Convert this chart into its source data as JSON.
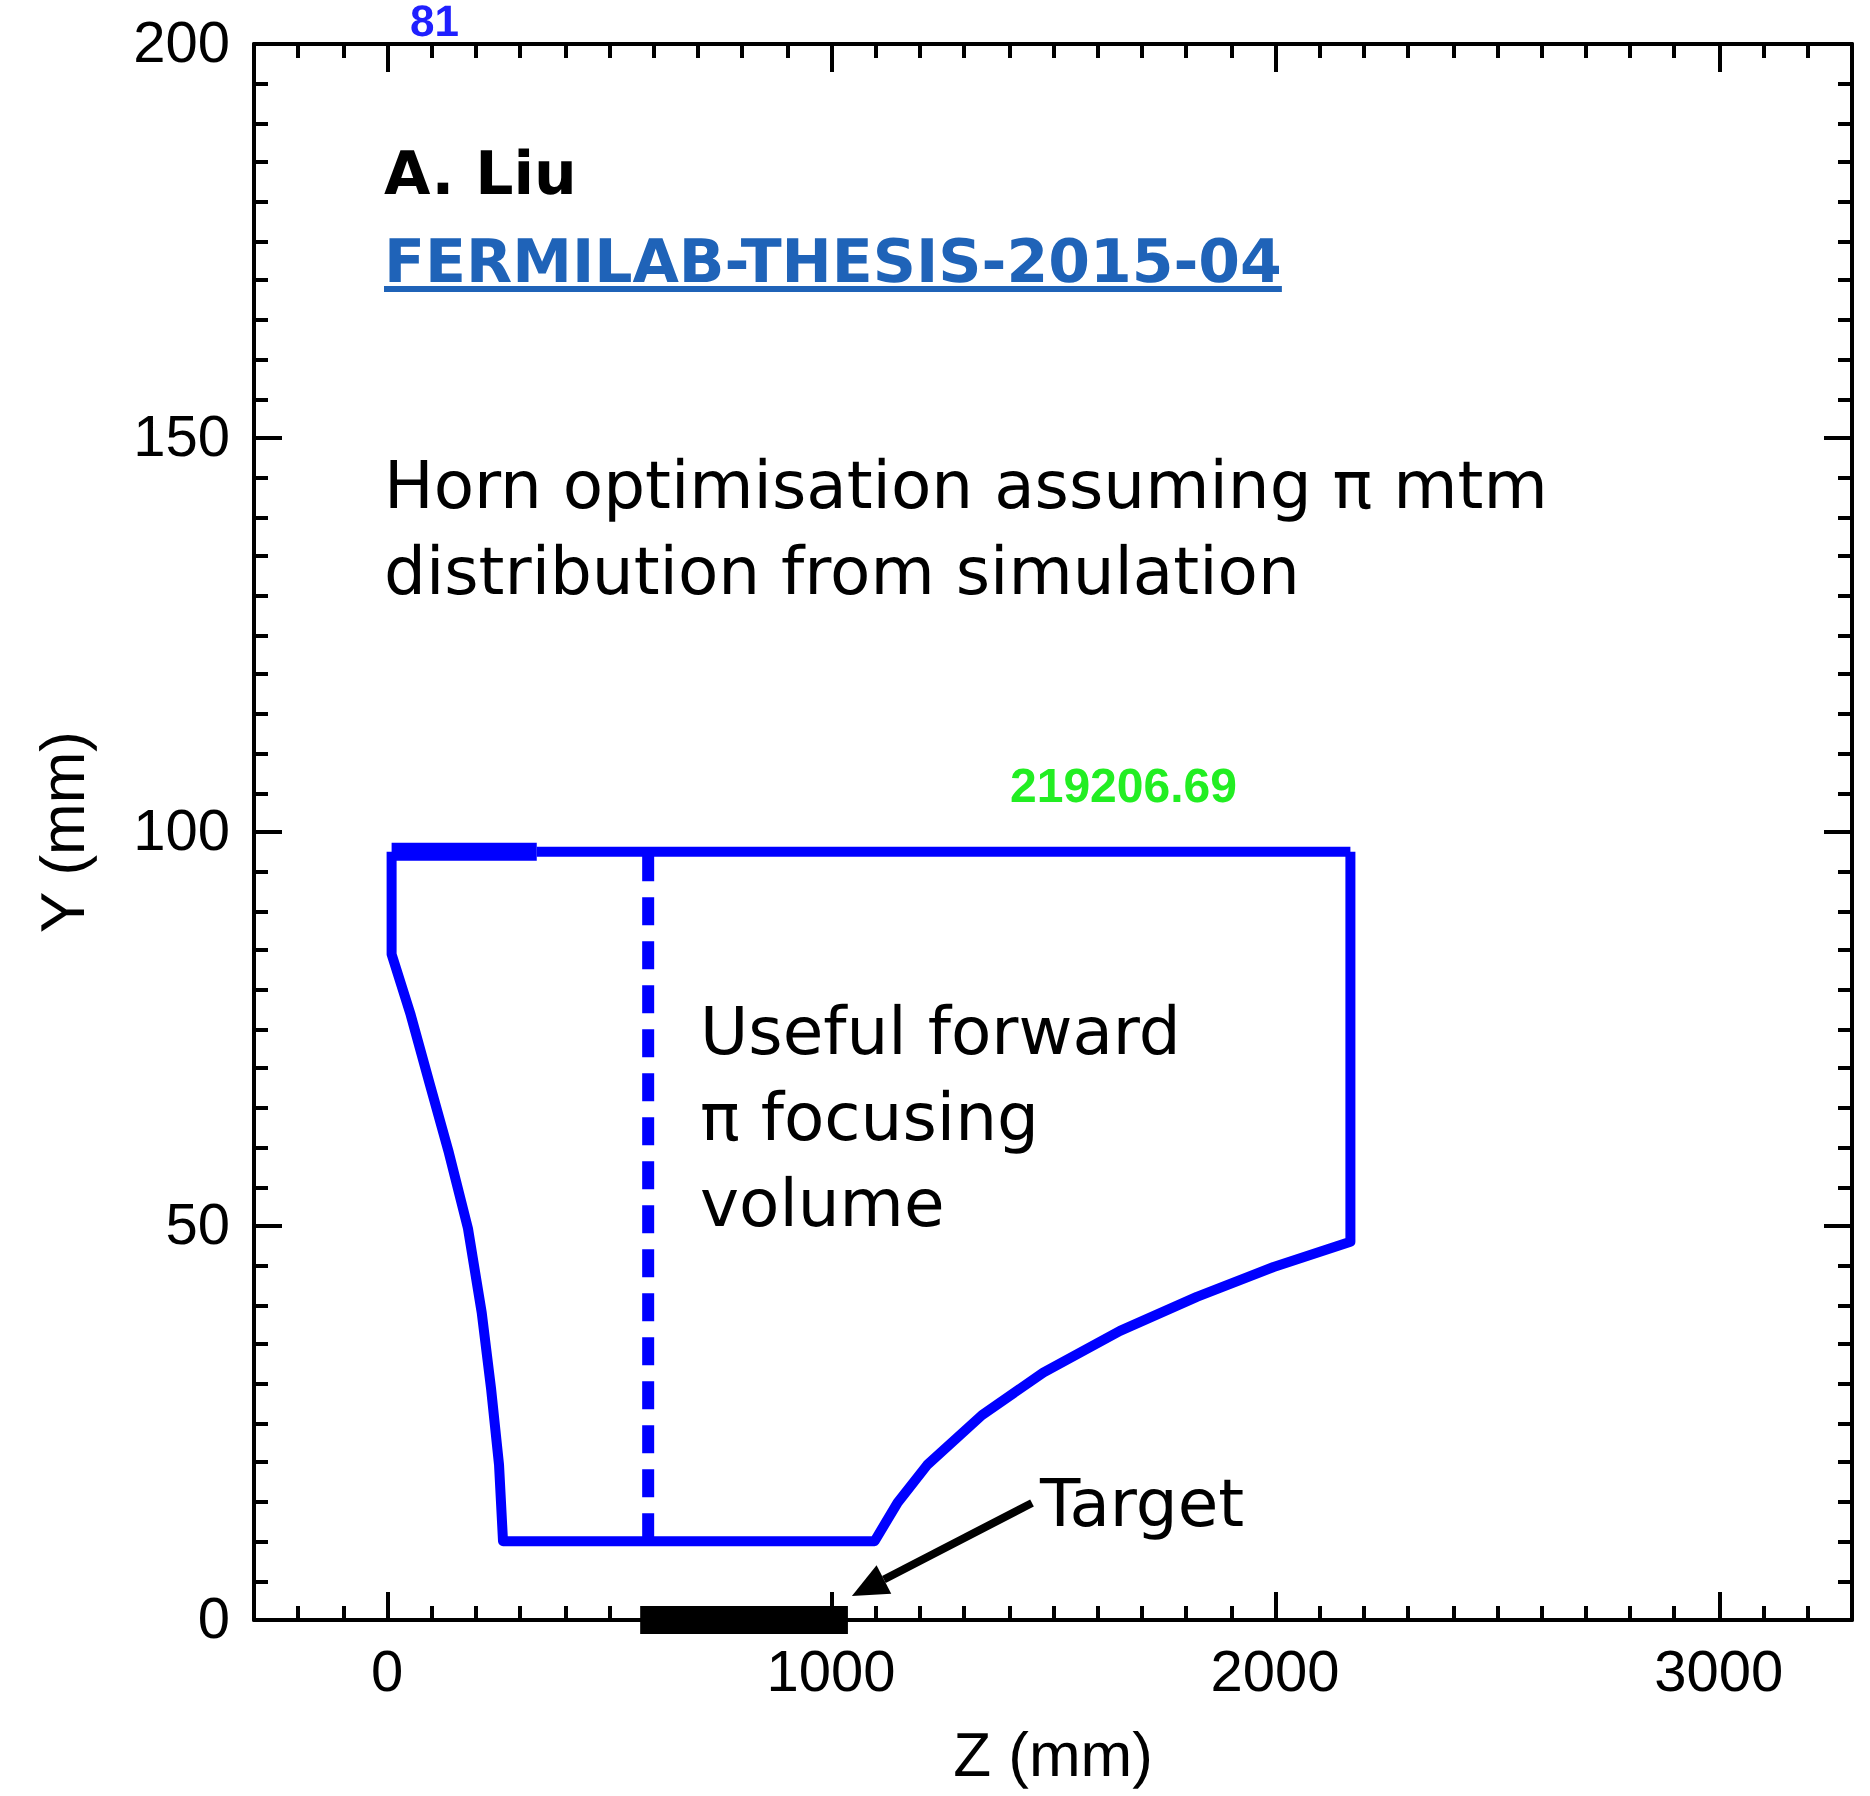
{
  "chart_data": {
    "type": "line",
    "xlabel": "Z (mm)",
    "ylabel": "Y (mm)",
    "xlim": [
      -300,
      3300
    ],
    "ylim": [
      0,
      200
    ],
    "xticks": [
      0,
      1000,
      2000,
      3000
    ],
    "yticks": [
      0,
      50,
      100,
      150,
      200
    ],
    "grid": false,
    "marker": "none",
    "series": [
      {
        "color": "#0000ff",
        "line_style": "solid",
        "x": [
          10,
          10,
          53,
          96,
          139,
          182,
          213,
          234,
          252,
          261,
          1098,
          1150,
          1217,
          1340,
          1478,
          1651,
          1824,
          1997,
          2170,
          2170
        ],
        "values": [
          97.5,
          84.5,
          76.8,
          68,
          59.3,
          49.7,
          39,
          29.4,
          19.7,
          10,
          10,
          14.9,
          19.7,
          26,
          31.4,
          36.7,
          41,
          44.8,
          48,
          97.5
        ]
      },
      {
        "color": "#0000ff",
        "line_style": "solid",
        "x": [
          337,
          2170
        ],
        "values": [
          97.5,
          97.5
        ]
      },
      {
        "color": "#0000ff",
        "line_style": "solid",
        "x": [
          10,
          337
        ],
        "values": [
          97.5,
          97.5
        ]
      },
      {
        "color": "#0000ff",
        "line_style": "dashed",
        "x": [
          588,
          588
        ],
        "values": [
          10,
          97.5
        ]
      },
      {
        "color": "#000000",
        "line_style": "solid",
        "x": [
          570,
          1038
        ],
        "values": [
          0,
          0
        ]
      }
    ],
    "annotations": [
      "81",
      "A. Liu",
      "FERMILAB-THESIS-2015-04",
      "Horn optimisation assuming π mtm distribution from simulation",
      "219206.69",
      "Useful forward π focusing volume",
      "Target"
    ]
  }
}
